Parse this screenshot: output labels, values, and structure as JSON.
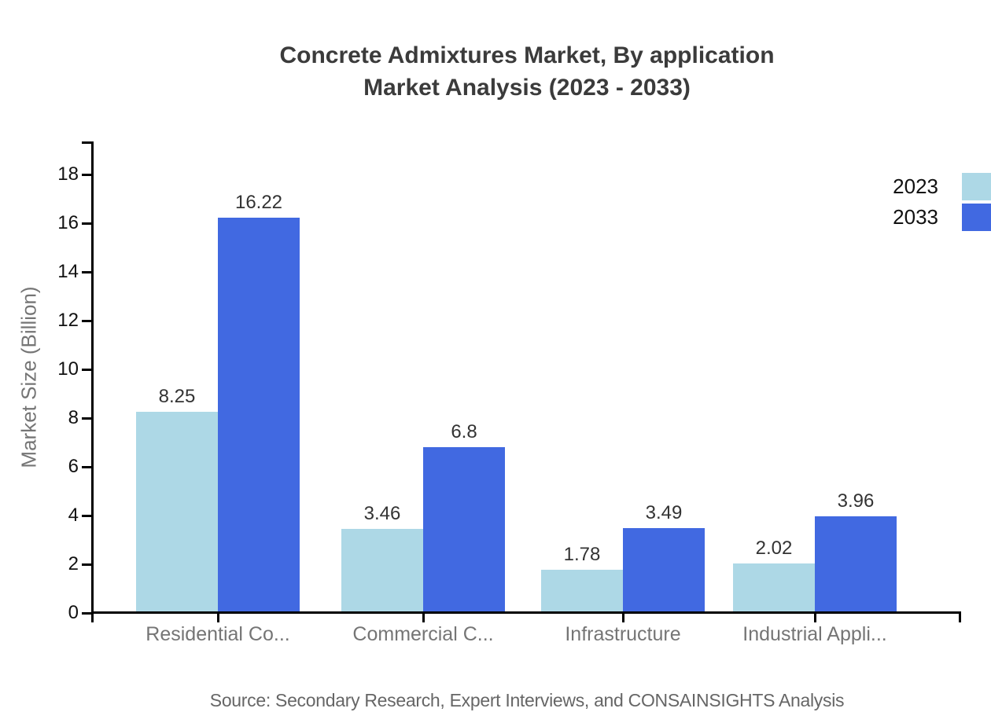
{
  "source": "Source: Secondary Research, Expert Interviews, and CONSAINSIGHTS Analysis",
  "chart_data": {
    "type": "bar",
    "title": "Concrete Admixtures Market, By application",
    "subtitle": "Market Analysis (2023 - 2033)",
    "categories": [
      "Residential Co...",
      "Commercial C...",
      "Infrastructure",
      "Industrial Appli..."
    ],
    "series": [
      {
        "name": "2023",
        "color": "#ADD8E6",
        "values": [
          8.25,
          3.46,
          1.78,
          2.02
        ]
      },
      {
        "name": "2033",
        "color": "#4169E1",
        "values": [
          16.22,
          6.8,
          3.49,
          3.96
        ]
      }
    ],
    "xlabel": "",
    "ylabel": "Market Size (Billion)",
    "ylim": [
      0,
      18
    ],
    "yticks": [
      0,
      2,
      4,
      6,
      8,
      10,
      12,
      14,
      16,
      18
    ],
    "grid": false,
    "value_labels": true,
    "legend_position": "top-right",
    "axis_color": "#000000",
    "title_color": "#3b3b3b",
    "value_label_color": "#333333",
    "category_label_color": "#757575",
    "source_color": "#666666"
  }
}
